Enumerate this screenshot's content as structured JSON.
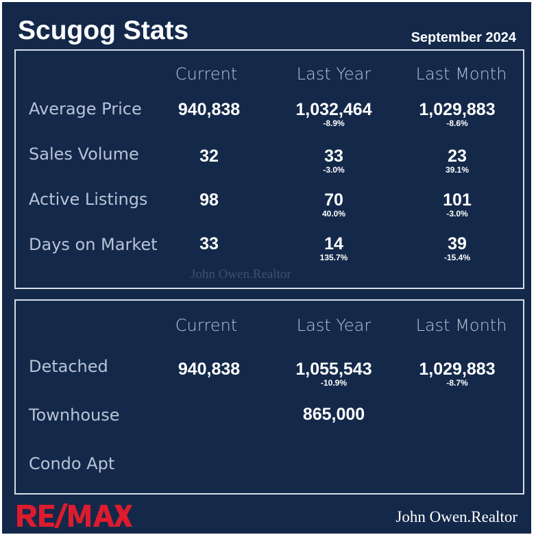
{
  "header": {
    "title": "Scugog Stats",
    "date": "September 2024"
  },
  "top_table": {
    "columns": [
      "Current",
      "Last Year",
      "Last Month"
    ],
    "rows": [
      {
        "label": "Average Price",
        "current": "940,838",
        "last_year": "1,032,464",
        "last_year_pct": "-8.9%",
        "last_month": "1,029,883",
        "last_month_pct": "-8.6%"
      },
      {
        "label": "Sales Volume",
        "current": "32",
        "last_year": "33",
        "last_year_pct": "-3.0%",
        "last_month": "23",
        "last_month_pct": "39.1%"
      },
      {
        "label": "Active Listings",
        "current": "98",
        "last_year": "70",
        "last_year_pct": "40.0%",
        "last_month": "101",
        "last_month_pct": "-3.0%"
      },
      {
        "label": "Days on Market",
        "current": "33",
        "last_year": "14",
        "last_year_pct": "135.7%",
        "last_month": "39",
        "last_month_pct": "-15.4%"
      }
    ]
  },
  "bottom_table": {
    "columns": [
      "Current",
      "Last Year",
      "Last Month"
    ],
    "rows": [
      {
        "label": "Detached",
        "current": "940,838",
        "last_year": "1,055,543",
        "last_year_pct": "-10.9%",
        "last_month": "1,029,883",
        "last_month_pct": "-8.7%"
      },
      {
        "label": "Townhouse",
        "current": "",
        "last_year": "865,000",
        "last_year_pct": "",
        "last_month": "",
        "last_month_pct": ""
      },
      {
        "label": "Condo Apt",
        "current": "",
        "last_year": "",
        "last_year_pct": "",
        "last_month": "",
        "last_month_pct": ""
      }
    ]
  },
  "watermark": "John Owen.Realtor",
  "footer": {
    "logo_text": "RE/MAX",
    "realtor_name": "John Owen.Realtor"
  },
  "colors": {
    "background": "#14294a",
    "text": "#ffffff",
    "label": "#b8c3d7",
    "border": "#d9dde5",
    "brand_red": "#dc1c2e",
    "brand_blue": "#003da5"
  },
  "icons": [
    "remax-logo"
  ]
}
